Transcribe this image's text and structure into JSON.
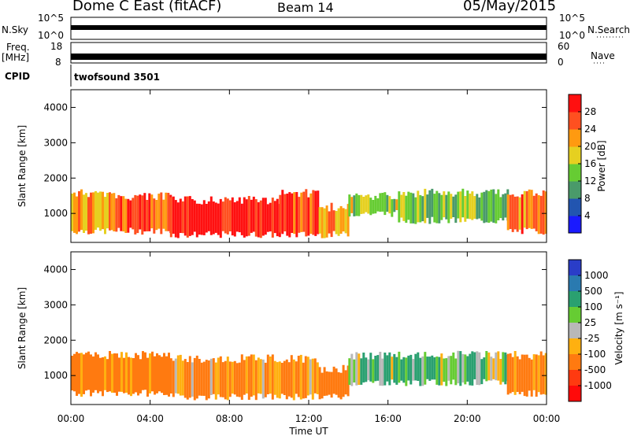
{
  "header": {
    "radar": "Dome C East (fitACF)",
    "beam": "Beam 14",
    "date": "05/May/2015"
  },
  "aux": {
    "nsky_label": "N.Sky",
    "nsky_ticks": [
      "10^5",
      "10^0"
    ],
    "nsearch_label": "N.Search",
    "nsearch_ticks": [
      "10^5",
      "10^0"
    ],
    "freq_label_1": "Freq.",
    "freq_label_2": "[MHz]",
    "freq_ticks": [
      "18",
      "8"
    ],
    "nave_label": "Nave",
    "nave_ticks": [
      "60",
      "0"
    ],
    "cpid_label": "CPID",
    "cpid_value": "twofsound 3501"
  },
  "chart_data": [
    {
      "type": "heatmap",
      "panel": "power",
      "ylabel": "Slant Range [km]",
      "xlabel": "",
      "y_ticks": [
        "1000",
        "2000",
        "3000",
        "4000"
      ],
      "y_tick_values": [
        1000,
        2000,
        3000,
        4000
      ],
      "ylim": [
        180,
        4500
      ],
      "colorbar_label": "Power [dB]",
      "colorbar_ticks": [
        "4",
        "8",
        "12",
        "16",
        "20",
        "24",
        "28"
      ],
      "colorbar_colors": [
        "#1a1aff",
        "#2255b0",
        "#4a9a6a",
        "#66cc33",
        "#e6d020",
        "#ff9a10",
        "#ff5020",
        "#ff1010"
      ],
      "echo_bands": [
        {
          "start_hr": 0.0,
          "end_hr": 2.0,
          "range_lo_km": 400,
          "range_hi_km": 1700,
          "level_db": 22
        },
        {
          "start_hr": 2.0,
          "end_hr": 5.0,
          "range_lo_km": 400,
          "range_hi_km": 1600,
          "level_db": 26
        },
        {
          "start_hr": 5.0,
          "end_hr": 10.5,
          "range_lo_km": 300,
          "range_hi_km": 1500,
          "level_db": 30
        },
        {
          "start_hr": 10.5,
          "end_hr": 12.5,
          "range_lo_km": 300,
          "range_hi_km": 1700,
          "level_db": 28
        },
        {
          "start_hr": 12.5,
          "end_hr": 14.0,
          "range_lo_km": 300,
          "range_hi_km": 1300,
          "level_db": 24
        },
        {
          "start_hr": 14.0,
          "end_hr": 16.5,
          "range_lo_km": 900,
          "range_hi_km": 1600,
          "level_db": 16
        },
        {
          "start_hr": 16.5,
          "end_hr": 22.0,
          "range_lo_km": 700,
          "range_hi_km": 1700,
          "level_db": 14
        },
        {
          "start_hr": 22.0,
          "end_hr": 24.0,
          "range_lo_km": 400,
          "range_hi_km": 1700,
          "level_db": 24
        }
      ]
    },
    {
      "type": "heatmap",
      "panel": "velocity",
      "ylabel": "Slant Range [km]",
      "xlabel": "Time UT",
      "x_ticks": [
        "00:00",
        "04:00",
        "08:00",
        "12:00",
        "16:00",
        "20:00",
        "00:00"
      ],
      "x_tick_hours": [
        0,
        4,
        8,
        12,
        16,
        20,
        24
      ],
      "xlim_hours": [
        0,
        24
      ],
      "y_ticks": [
        "1000",
        "2000",
        "3000",
        "4000"
      ],
      "y_tick_values": [
        1000,
        2000,
        3000,
        4000
      ],
      "ylim": [
        180,
        4500
      ],
      "colorbar_label": "Velocity [m s⁻¹]",
      "colorbar_ticks": [
        "1000",
        "500",
        "100",
        "25",
        "-25",
        "-100",
        "-500",
        "-1000"
      ],
      "colorbar_colors": [
        "#2a3dc8",
        "#2a7ab0",
        "#2aa070",
        "#66cc33",
        "#b8b8b8",
        "#ffb010",
        "#ff7a10",
        "#ff3a10",
        "#ff0a0a"
      ],
      "echo_bands": [
        {
          "start_hr": 0.0,
          "end_hr": 5.0,
          "range_lo_km": 400,
          "range_hi_km": 1700,
          "velocity_ms": -200
        },
        {
          "start_hr": 5.0,
          "end_hr": 12.5,
          "range_lo_km": 300,
          "range_hi_km": 1600,
          "velocity_ms": -150
        },
        {
          "start_hr": 12.5,
          "end_hr": 14.0,
          "range_lo_km": 300,
          "range_hi_km": 1300,
          "velocity_ms": -300
        },
        {
          "start_hr": 14.0,
          "end_hr": 22.0,
          "range_lo_km": 700,
          "range_hi_km": 1700,
          "velocity_ms": 100
        },
        {
          "start_hr": 22.0,
          "end_hr": 24.0,
          "range_lo_km": 400,
          "range_hi_km": 1700,
          "velocity_ms": -200
        }
      ]
    }
  ]
}
